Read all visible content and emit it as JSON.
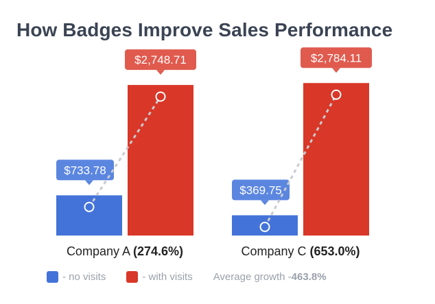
{
  "title": "How Badges Improve Sales Performance",
  "colors": {
    "no_visits": "#4373d9",
    "with_visits": "#d93728",
    "label_bg_no": "#5b86e0",
    "label_bg_with": "#e05a4e",
    "connector": "#c8cbd0"
  },
  "chart_data": {
    "type": "bar",
    "categories": [
      "Company A",
      "Company C"
    ],
    "category_growth": [
      "(274.6%)",
      "(653.0%)"
    ],
    "series": [
      {
        "name": "- no visits",
        "values": [
          733.78,
          369.75
        ],
        "labels": [
          "$733.78",
          "$369.75"
        ]
      },
      {
        "name": "- with visits",
        "values": [
          2748.71,
          2784.11
        ],
        "labels": [
          "$2,748.71",
          "$2,784.11"
        ]
      }
    ],
    "ylim": [
      0,
      3200
    ]
  },
  "legend": {
    "no_visits": "- no visits",
    "with_visits": "- with visits",
    "average_growth_label": "Average growth - ",
    "average_growth_value": "463.8%"
  }
}
